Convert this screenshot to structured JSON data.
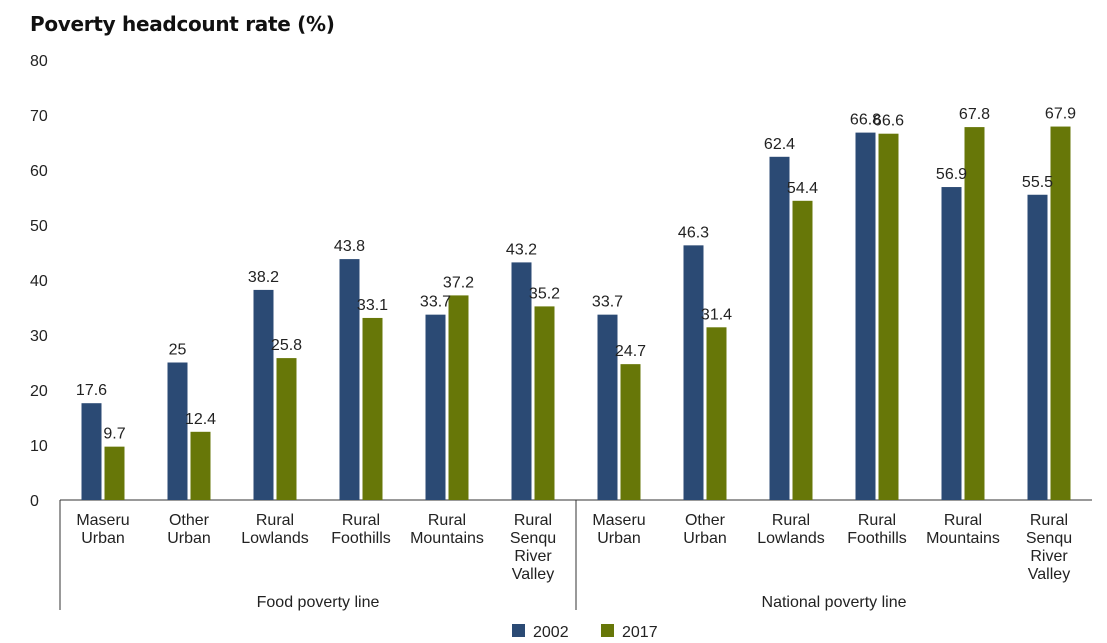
{
  "chart_data": {
    "type": "bar",
    "title": "Poverty headcount rate (%)",
    "ylim": [
      0,
      80
    ],
    "yticks": [
      0,
      10,
      20,
      30,
      40,
      50,
      60,
      70,
      80
    ],
    "grid": false,
    "legend_position": "bottom-center",
    "groups": [
      {
        "label": "Food poverty line",
        "categories": [
          [
            "Maseru",
            "Urban"
          ],
          [
            "Other",
            "Urban"
          ],
          [
            "Rural",
            "Lowlands"
          ],
          [
            "Rural",
            "Foothills"
          ],
          [
            "Rural",
            "Mountains"
          ],
          [
            "Rural",
            "Senqu",
            "River",
            "Valley"
          ]
        ]
      },
      {
        "label": "National poverty line",
        "categories": [
          [
            "Maseru",
            "Urban"
          ],
          [
            "Other",
            "Urban"
          ],
          [
            "Rural",
            "Lowlands"
          ],
          [
            "Rural",
            "Foothills"
          ],
          [
            "Rural",
            "Mountains"
          ],
          [
            "Rural",
            "Senqu",
            "River",
            "Valley"
          ]
        ]
      }
    ],
    "series": [
      {
        "name": "2002",
        "color": "#2b4a74",
        "values": [
          17.6,
          25,
          38.2,
          43.8,
          33.7,
          43.2,
          33.7,
          46.3,
          62.4,
          66.8,
          56.9,
          55.5
        ]
      },
      {
        "name": "2017",
        "color": "#677708",
        "values": [
          9.7,
          12.4,
          25.8,
          33.1,
          37.2,
          35.2,
          24.7,
          31.4,
          54.4,
          66.6,
          67.8,
          67.9
        ]
      }
    ]
  }
}
